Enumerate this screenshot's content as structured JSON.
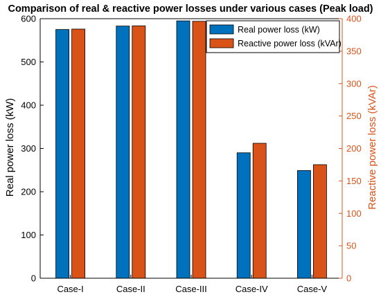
{
  "chart_data": {
    "type": "bar",
    "title": "Comparison of real & reactive power losses under various cases (Peak load)",
    "categories": [
      "Case-I",
      "Case-II",
      "Case-III",
      "Case-IV",
      "Case-V"
    ],
    "xlabel": "",
    "y_left": {
      "label": "Real power loss (kW)",
      "lim": [
        0,
        600
      ],
      "ticks": [
        0,
        100,
        200,
        300,
        400,
        500,
        600
      ],
      "color": "#000000"
    },
    "y_right": {
      "label": "Reactive power loss (kVAr)",
      "lim": [
        0,
        400
      ],
      "ticks": [
        0,
        50,
        100,
        150,
        200,
        250,
        300,
        350,
        400
      ],
      "color": "#D95319"
    },
    "series": [
      {
        "name": "Real power loss (kW)",
        "axis": "left",
        "color": "#0072BD",
        "values": [
          575,
          583,
          595,
          290,
          249
        ]
      },
      {
        "name": "Reactive power loss (kVAr)",
        "axis": "right",
        "color": "#D95319",
        "values": [
          384,
          389,
          396,
          208,
          175
        ]
      }
    ],
    "legend_position": "top-right",
    "grid": false
  }
}
